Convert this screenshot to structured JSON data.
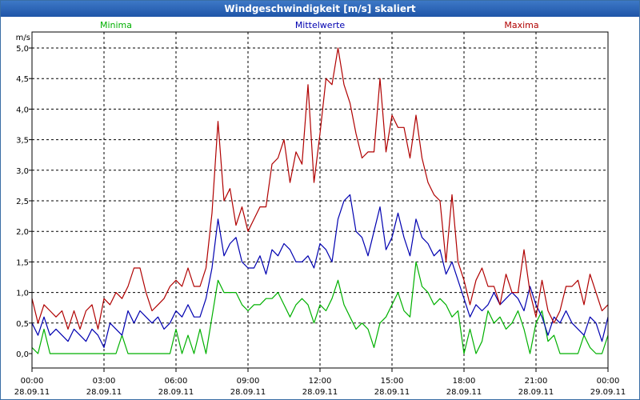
{
  "window": {
    "title": "Windgeschwindigkeit [m/s] skaliert"
  },
  "chart_data": {
    "type": "line",
    "title": "Windgeschwindigkeit [m/s] skaliert",
    "ylabel": "m/s",
    "ylim": [
      0.0,
      5.0
    ],
    "y_ticks": [
      "0,0",
      "0,5",
      "1,0",
      "1,5",
      "2,0",
      "2,5",
      "3,0",
      "3,5",
      "4,0",
      "4,5",
      "5,0"
    ],
    "x_range": [
      "28.09.11 00:00",
      "29.09.11 00:00"
    ],
    "x_ticks": [
      {
        "time": "00:00",
        "date": "28.09.11"
      },
      {
        "time": "03:00",
        "date": "28.09.11"
      },
      {
        "time": "06:00",
        "date": "28.09.11"
      },
      {
        "time": "09:00",
        "date": "28.09.11"
      },
      {
        "time": "12:00",
        "date": "28.09.11"
      },
      {
        "time": "15:00",
        "date": "28.09.11"
      },
      {
        "time": "18:00",
        "date": "28.09.11"
      },
      {
        "time": "21:00",
        "date": "28.09.11"
      },
      {
        "time": "00:00",
        "date": "29.09.11"
      }
    ],
    "grid": true,
    "legend_position": "top",
    "x_hours": [
      0,
      0.25,
      0.5,
      0.75,
      1,
      1.25,
      1.5,
      1.75,
      2,
      2.25,
      2.5,
      2.75,
      3,
      3.25,
      3.5,
      3.75,
      4,
      4.25,
      4.5,
      4.75,
      5,
      5.25,
      5.5,
      5.75,
      6,
      6.25,
      6.5,
      6.75,
      7,
      7.25,
      7.5,
      7.75,
      8,
      8.25,
      8.5,
      8.75,
      9,
      9.25,
      9.5,
      9.75,
      10,
      10.25,
      10.5,
      10.75,
      11,
      11.25,
      11.5,
      11.75,
      12,
      12.25,
      12.5,
      12.75,
      13,
      13.25,
      13.5,
      13.75,
      14,
      14.25,
      14.5,
      14.75,
      15,
      15.25,
      15.5,
      15.75,
      16,
      16.25,
      16.5,
      16.75,
      17,
      17.25,
      17.5,
      17.75,
      18,
      18.25,
      18.5,
      18.75,
      19,
      19.25,
      19.5,
      19.75,
      20,
      20.25,
      20.5,
      20.75,
      21,
      21.25,
      21.5,
      21.75,
      22,
      22.25,
      22.5,
      22.75,
      23,
      23.25,
      23.5,
      23.75,
      24
    ],
    "series": [
      {
        "name": "Minima",
        "color": "#00b000",
        "values": [
          0.1,
          0,
          0.4,
          0,
          0,
          0,
          0,
          0,
          0,
          0,
          0,
          0,
          0,
          0,
          0,
          0.3,
          0,
          0,
          0,
          0,
          0,
          0,
          0,
          0,
          0.4,
          0,
          0.3,
          0,
          0.4,
          0,
          0.6,
          1.2,
          1.0,
          1.0,
          1.0,
          0.8,
          0.7,
          0.8,
          0.8,
          0.9,
          0.9,
          1.0,
          0.8,
          0.6,
          0.8,
          0.9,
          0.8,
          0.5,
          0.8,
          0.7,
          0.9,
          1.2,
          0.8,
          0.6,
          0.4,
          0.5,
          0.4,
          0.1,
          0.5,
          0.6,
          0.8,
          1.0,
          0.7,
          0.6,
          1.5,
          1.1,
          1.0,
          0.8,
          0.9,
          0.8,
          0.6,
          0.7,
          0,
          0.4,
          0,
          0.2,
          0.7,
          0.5,
          0.6,
          0.4,
          0.5,
          0.7,
          0.4,
          0,
          0.5,
          0.7,
          0.2,
          0.3,
          0,
          0,
          0,
          0,
          0.3,
          0.1,
          0,
          0,
          0.3
        ]
      },
      {
        "name": "Mittelwerte",
        "color": "#0000b0",
        "values": [
          0.5,
          0.3,
          0.6,
          0.3,
          0.4,
          0.3,
          0.2,
          0.4,
          0.3,
          0.2,
          0.4,
          0.3,
          0.1,
          0.5,
          0.4,
          0.3,
          0.7,
          0.5,
          0.7,
          0.6,
          0.5,
          0.6,
          0.4,
          0.5,
          0.7,
          0.6,
          0.8,
          0.6,
          0.6,
          0.9,
          1.4,
          2.2,
          1.6,
          1.8,
          1.9,
          1.5,
          1.4,
          1.4,
          1.6,
          1.3,
          1.7,
          1.6,
          1.8,
          1.7,
          1.5,
          1.5,
          1.6,
          1.4,
          1.8,
          1.7,
          1.5,
          2.2,
          2.5,
          2.6,
          2.0,
          1.9,
          1.6,
          2.0,
          2.4,
          1.7,
          1.9,
          2.3,
          1.9,
          1.6,
          2.2,
          1.9,
          1.8,
          1.6,
          1.7,
          1.3,
          1.5,
          1.2,
          0.9,
          0.6,
          0.8,
          0.7,
          0.8,
          1.0,
          0.8,
          0.9,
          1.0,
          0.9,
          0.7,
          1.1,
          0.8,
          0.6,
          0.3,
          0.6,
          0.5,
          0.7,
          0.5,
          0.4,
          0.3,
          0.6,
          0.5,
          0.2,
          0.6
        ]
      },
      {
        "name": "Maxima",
        "color": "#b00000",
        "values": [
          0.9,
          0.5,
          0.8,
          0.7,
          0.6,
          0.7,
          0.4,
          0.7,
          0.4,
          0.7,
          0.8,
          0.4,
          0.9,
          0.8,
          1.0,
          0.9,
          1.1,
          1.4,
          1.4,
          1.0,
          0.7,
          0.8,
          0.9,
          1.1,
          1.2,
          1.1,
          1.4,
          1.1,
          1.1,
          1.4,
          2.3,
          3.8,
          2.5,
          2.7,
          2.1,
          2.4,
          2.0,
          2.2,
          2.4,
          2.4,
          3.1,
          3.2,
          3.5,
          2.8,
          3.3,
          3.1,
          4.4,
          2.8,
          3.6,
          4.5,
          4.4,
          5.0,
          4.4,
          4.1,
          3.6,
          3.2,
          3.3,
          3.3,
          4.5,
          3.3,
          3.9,
          3.7,
          3.7,
          3.2,
          3.9,
          3.2,
          2.8,
          2.6,
          2.5,
          1.5,
          2.6,
          1.5,
          1.2,
          0.8,
          1.2,
          1.4,
          1.1,
          1.1,
          0.8,
          1.3,
          1.0,
          1.0,
          1.7,
          1.0,
          0.6,
          1.2,
          0.7,
          0.5,
          0.7,
          1.1,
          1.1,
          1.2,
          0.8,
          1.3,
          1.0,
          0.7,
          0.8
        ]
      }
    ]
  }
}
